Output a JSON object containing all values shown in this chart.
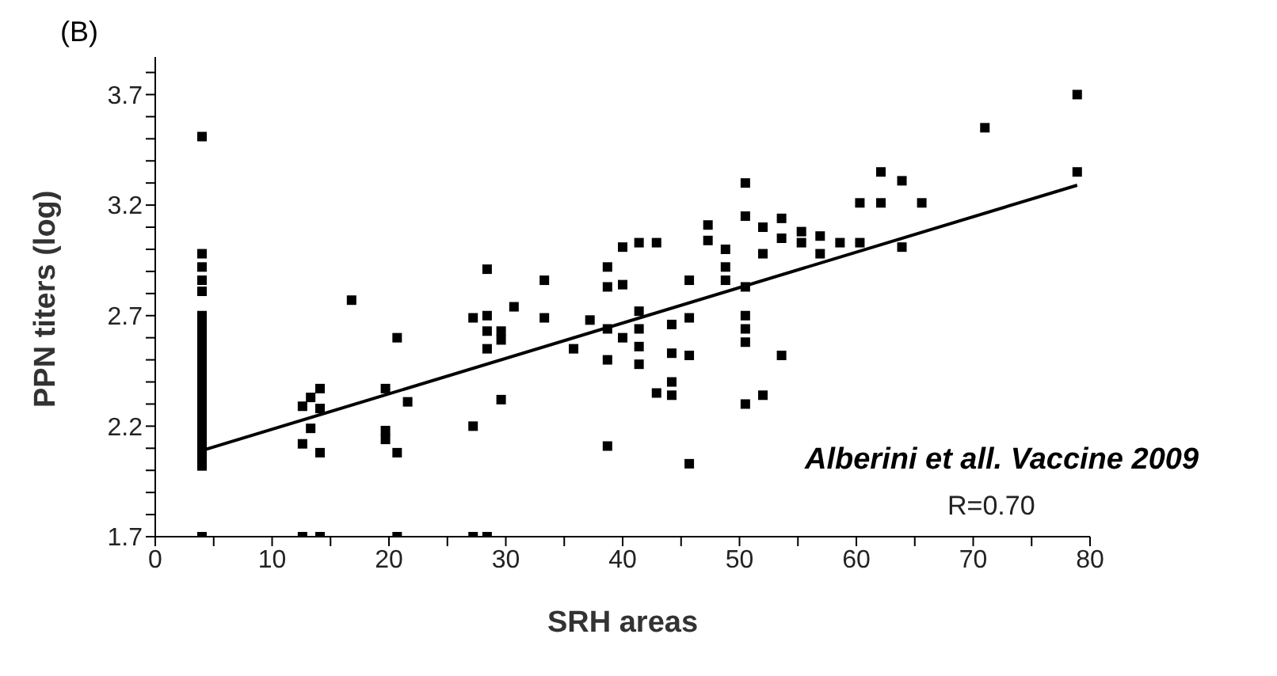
{
  "chart_data": {
    "type": "scatter",
    "xlabel": "SRH areas",
    "ylabel": "PPN titers (log)",
    "annotations": [
      "(B)",
      "Alberini et all. Vaccine 2009",
      "R=0.70"
    ],
    "xlim": [
      0,
      80
    ],
    "ylim": [
      1.7,
      3.87
    ],
    "xticks": [
      0,
      {
        "value": 5,
        "label": null
      },
      10,
      {
        "value": 15,
        "label": null
      },
      20,
      {
        "value": 25,
        "label": null
      },
      30,
      {
        "value": 35,
        "label": null
      },
      40,
      {
        "value": 45,
        "label": null
      },
      50,
      {
        "value": 55,
        "label": null
      },
      60,
      {
        "value": 65,
        "label": null
      },
      70,
      {
        "value": 75,
        "label": null
      },
      80
    ],
    "yticks": [
      1.7,
      {
        "value": 1.8,
        "label": null
      },
      {
        "value": 1.9,
        "label": null
      },
      {
        "value": 2.0,
        "label": null
      },
      {
        "value": 2.1,
        "label": null
      },
      2.2,
      {
        "value": 2.3,
        "label": null
      },
      {
        "value": 2.4,
        "label": null
      },
      {
        "value": 2.5,
        "label": null
      },
      {
        "value": 2.6,
        "label": null
      },
      2.7,
      {
        "value": 2.8,
        "label": null
      },
      {
        "value": 2.9,
        "label": null
      },
      {
        "value": 3.0,
        "label": null
      },
      {
        "value": 3.1,
        "label": null
      },
      3.2,
      {
        "value": 3.3,
        "label": null
      },
      {
        "value": 3.4,
        "label": null
      },
      {
        "value": 3.5,
        "label": null
      },
      {
        "value": 3.6,
        "label": null
      },
      3.7,
      {
        "value": 3.8,
        "label": null
      }
    ],
    "marker": "square",
    "grid": false,
    "series": [
      {
        "color": "#000000",
        "x": [
          4,
          4,
          4,
          4,
          4,
          4,
          4,
          4,
          4,
          4,
          4,
          4,
          4,
          4,
          4,
          4,
          4,
          4,
          4,
          4,
          4,
          4,
          4,
          4,
          12.6,
          12.6,
          13.3,
          13.3,
          14.1,
          14.1,
          14.1,
          16.8,
          19.7,
          19.7,
          19.7,
          20.7,
          20.7,
          21.6,
          12.6,
          14.1,
          20.7,
          27.2,
          27.2,
          28.4,
          28.4,
          28.4,
          28.4,
          29.6,
          29.6,
          29.6,
          30.7,
          33.3,
          33.3,
          35.8,
          37.2,
          38.7,
          38.7,
          38.7,
          38.7,
          38.7,
          40.0,
          40.0,
          40.0,
          41.4,
          41.4,
          41.4,
          41.4,
          41.4,
          42.9,
          42.9,
          44.2,
          44.2,
          44.2,
          44.2,
          45.7,
          45.7,
          45.7,
          45.7,
          47.3,
          47.3,
          48.8,
          48.8,
          48.8,
          50.5,
          50.5,
          50.5,
          50.5,
          50.5,
          50.5,
          50.5,
          52.0,
          52.0,
          52.0,
          27.2,
          28.4,
          53.6,
          53.6,
          53.6,
          55.3,
          55.3,
          56.9,
          56.9,
          58.6,
          60.3,
          60.3,
          62.1,
          62.1,
          63.9,
          63.9,
          65.6,
          71.0,
          78.9,
          78.9
        ],
        "values": [
          3.51,
          2.98,
          2.92,
          2.86,
          2.81,
          2.7,
          2.66,
          2.62,
          2.58,
          2.54,
          2.5,
          2.46,
          2.42,
          2.38,
          2.34,
          2.3,
          2.26,
          2.22,
          2.18,
          2.14,
          2.1,
          2.06,
          2.02,
          1.7,
          2.29,
          2.12,
          2.33,
          2.19,
          2.37,
          2.28,
          2.08,
          2.77,
          2.37,
          2.18,
          2.14,
          2.6,
          2.08,
          2.31,
          1.7,
          1.7,
          1.7,
          2.69,
          2.2,
          2.91,
          2.7,
          2.63,
          2.55,
          2.63,
          2.59,
          2.32,
          2.74,
          2.86,
          2.69,
          2.55,
          2.68,
          2.92,
          2.83,
          2.64,
          2.5,
          2.11,
          3.01,
          2.84,
          2.6,
          3.03,
          2.72,
          2.64,
          2.56,
          2.48,
          3.03,
          2.35,
          2.66,
          2.53,
          2.4,
          2.34,
          2.86,
          2.69,
          2.52,
          2.03,
          3.11,
          3.04,
          3.0,
          2.92,
          2.86,
          3.3,
          3.15,
          2.83,
          2.7,
          2.64,
          2.58,
          2.3,
          3.1,
          2.98,
          2.34,
          1.7,
          1.7,
          2.52,
          3.14,
          3.05,
          3.08,
          3.03,
          3.06,
          2.98,
          3.03,
          3.21,
          3.03,
          3.35,
          3.21,
          3.31,
          3.01,
          3.21,
          3.55,
          3.7,
          3.35
        ]
      },
      {
        "type": "line",
        "color": "#000000",
        "marker": "none",
        "line_style": "solid",
        "x": [
          4,
          78.9
        ],
        "values": [
          2.09,
          3.29
        ]
      }
    ]
  }
}
